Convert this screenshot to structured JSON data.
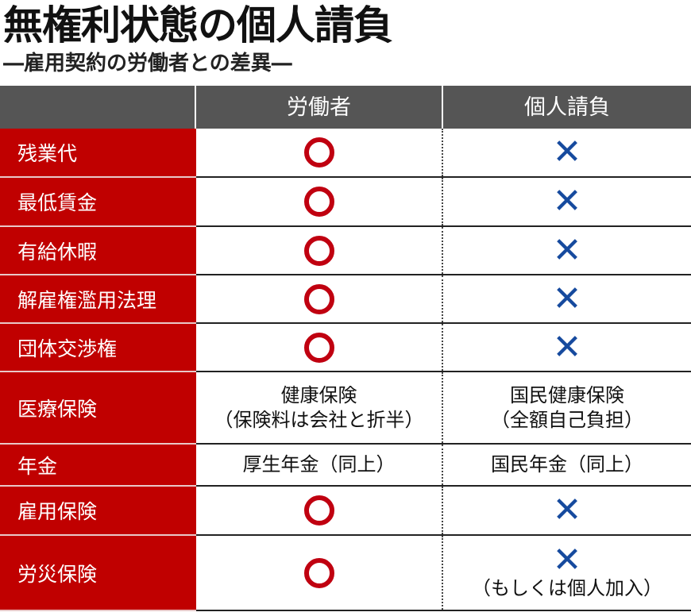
{
  "title": "無権利状態の個人請負",
  "subtitle": "―雇用契約の労働者との差異―",
  "colors": {
    "label_bg": "#c00000",
    "header_bg": "#555555",
    "circle": "#c00010",
    "cross": "#164a9e"
  },
  "header": [
    "",
    "労働者",
    "個人請負"
  ],
  "rows": [
    {
      "label": "残業代",
      "worker": {
        "mark": "circle"
      },
      "contractor": {
        "mark": "cross"
      }
    },
    {
      "label": "最低賃金",
      "worker": {
        "mark": "circle"
      },
      "contractor": {
        "mark": "cross"
      }
    },
    {
      "label": "有給休暇",
      "worker": {
        "mark": "circle"
      },
      "contractor": {
        "mark": "cross"
      }
    },
    {
      "label": "解雇権濫用法理",
      "worker": {
        "mark": "circle"
      },
      "contractor": {
        "mark": "cross"
      }
    },
    {
      "label": "団体交渉権",
      "worker": {
        "mark": "circle"
      },
      "contractor": {
        "mark": "cross"
      }
    },
    {
      "label": "医療保険",
      "worker": {
        "text": [
          "健康保険",
          "（保険料は会社と折半）"
        ]
      },
      "contractor": {
        "text": [
          "国民健康保険",
          "（全額自己負担）"
        ]
      }
    },
    {
      "label": "年金",
      "worker": {
        "text": [
          "厚生年金（同上）"
        ]
      },
      "contractor": {
        "text": [
          "国民年金（同上）"
        ]
      }
    },
    {
      "label": "雇用保険",
      "worker": {
        "mark": "circle"
      },
      "contractor": {
        "mark": "cross"
      }
    },
    {
      "label": "労災保険",
      "worker": {
        "mark": "circle"
      },
      "contractor": {
        "mark": "cross",
        "text": [
          "（もしくは個人加入）"
        ]
      }
    }
  ]
}
